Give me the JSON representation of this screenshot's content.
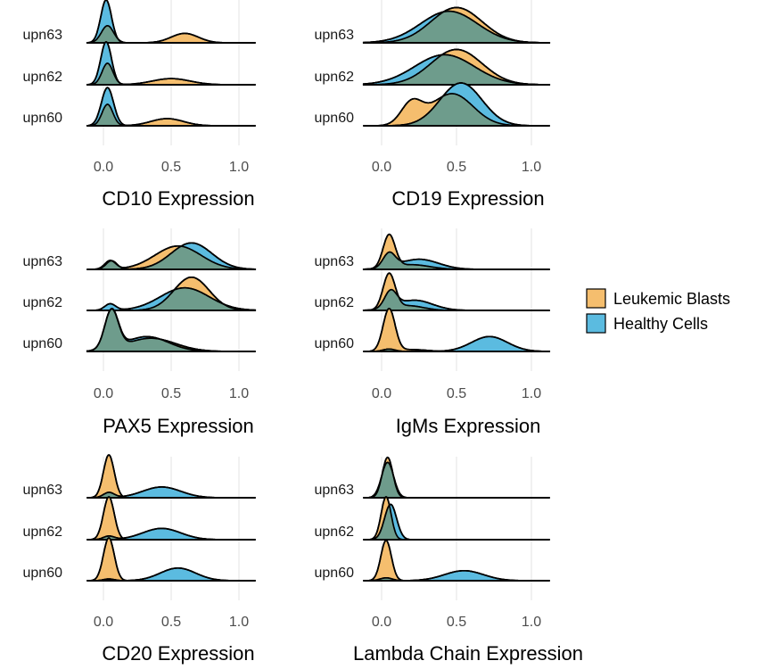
{
  "chart_data": [
    {
      "type": "ridgeline",
      "xlabel": "CD10 Expression",
      "xlim": [
        -0.12,
        1.12
      ],
      "xticks": [
        {
          "value": 0,
          "label": "0.0"
        },
        {
          "value": 0.5,
          "label": "0.5"
        },
        {
          "value": 1,
          "label": "1.0"
        }
      ],
      "groups": [
        {
          "label": "upn63",
          "leukemic": [
            {
              "mu": 0.03,
              "sd": 0.045,
              "w": 0.45
            },
            {
              "mu": 0.6,
              "sd": 0.1,
              "w": 0.55
            }
          ],
          "healthy": [
            {
              "mu": 0.02,
              "sd": 0.04,
              "w": 1.0
            }
          ]
        },
        {
          "label": "upn62",
          "leukemic": [
            {
              "mu": 0.03,
              "sd": 0.04,
              "w": 0.5
            },
            {
              "mu": 0.5,
              "sd": 0.14,
              "w": 0.5
            }
          ],
          "healthy": [
            {
              "mu": 0.02,
              "sd": 0.04,
              "w": 1.0
            }
          ]
        },
        {
          "label": "upn60",
          "leukemic": [
            {
              "mu": 0.03,
              "sd": 0.04,
              "w": 0.5
            },
            {
              "mu": 0.47,
              "sd": 0.12,
              "w": 0.5
            }
          ],
          "healthy": [
            {
              "mu": 0.03,
              "sd": 0.045,
              "w": 1.0
            }
          ]
        }
      ]
    },
    {
      "type": "ridgeline",
      "xlabel": "CD19 Expression",
      "xlim": [
        -0.12,
        1.12
      ],
      "xticks": [
        {
          "value": 0,
          "label": "0.0"
        },
        {
          "value": 0.5,
          "label": "0.5"
        },
        {
          "value": 1,
          "label": "1.0"
        }
      ],
      "groups": [
        {
          "label": "upn63",
          "leukemic": [
            {
              "mu": 0.5,
              "sd": 0.17,
              "w": 1.0
            }
          ],
          "healthy": [
            {
              "mu": 0.45,
              "sd": 0.19,
              "w": 1.0
            }
          ]
        },
        {
          "label": "upn62",
          "leukemic": [
            {
              "mu": 0.5,
              "sd": 0.17,
              "w": 1.0
            }
          ],
          "healthy": [
            {
              "mu": 0.42,
              "sd": 0.2,
              "w": 1.0
            }
          ]
        },
        {
          "label": "upn60",
          "leukemic": [
            {
              "mu": 0.2,
              "sd": 0.07,
              "w": 0.25
            },
            {
              "mu": 0.47,
              "sd": 0.14,
              "w": 0.75
            }
          ],
          "healthy": [
            {
              "mu": 0.53,
              "sd": 0.14,
              "w": 1.0
            }
          ]
        }
      ]
    },
    {
      "type": "ridgeline",
      "xlabel": "PAX5 Expression",
      "xlim": [
        -0.12,
        1.12
      ],
      "xticks": [
        {
          "value": 0,
          "label": "0.0"
        },
        {
          "value": 0.5,
          "label": "0.5"
        },
        {
          "value": 1,
          "label": "1.0"
        }
      ],
      "groups": [
        {
          "label": "upn63",
          "leukemic": [
            {
              "mu": 0.05,
              "sd": 0.04,
              "w": 0.08
            },
            {
              "mu": 0.55,
              "sd": 0.17,
              "w": 0.92
            }
          ],
          "healthy": [
            {
              "mu": 0.06,
              "sd": 0.04,
              "w": 0.08
            },
            {
              "mu": 0.65,
              "sd": 0.15,
              "w": 0.92
            }
          ]
        },
        {
          "label": "upn62",
          "leukemic": [
            {
              "mu": 0.65,
              "sd": 0.13,
              "w": 1.0
            }
          ],
          "healthy": [
            {
              "mu": 0.05,
              "sd": 0.04,
              "w": 0.06
            },
            {
              "mu": 0.6,
              "sd": 0.18,
              "w": 0.94
            }
          ]
        },
        {
          "label": "upn60",
          "leukemic": [
            {
              "mu": 0.06,
              "sd": 0.05,
              "w": 0.45
            },
            {
              "mu": 0.35,
              "sd": 0.18,
              "w": 0.55
            }
          ],
          "healthy": [
            {
              "mu": 0.06,
              "sd": 0.05,
              "w": 0.45
            },
            {
              "mu": 0.32,
              "sd": 0.16,
              "w": 0.55
            }
          ]
        }
      ]
    },
    {
      "type": "ridgeline",
      "xlabel": "IgMs Expression",
      "xlim": [
        -0.12,
        1.12
      ],
      "xticks": [
        {
          "value": 0,
          "label": "0.0"
        },
        {
          "value": 0.5,
          "label": "0.5"
        },
        {
          "value": 1,
          "label": "1.0"
        }
      ],
      "groups": [
        {
          "label": "upn63",
          "leukemic": [
            {
              "mu": 0.05,
              "sd": 0.04,
              "w": 0.7
            },
            {
              "mu": 0.2,
              "sd": 0.12,
              "w": 0.3
            }
          ],
          "healthy": [
            {
              "mu": 0.05,
              "sd": 0.04,
              "w": 0.3
            },
            {
              "mu": 0.25,
              "sd": 0.13,
              "w": 0.7
            }
          ]
        },
        {
          "label": "upn62",
          "leukemic": [
            {
              "mu": 0.05,
              "sd": 0.04,
              "w": 0.75
            },
            {
              "mu": 0.18,
              "sd": 0.1,
              "w": 0.25
            }
          ],
          "healthy": [
            {
              "mu": 0.06,
              "sd": 0.04,
              "w": 0.35
            },
            {
              "mu": 0.22,
              "sd": 0.12,
              "w": 0.65
            }
          ]
        },
        {
          "label": "upn60",
          "leukemic": [
            {
              "mu": 0.05,
              "sd": 0.04,
              "w": 0.9
            },
            {
              "mu": 0.2,
              "sd": 0.1,
              "w": 0.1
            }
          ],
          "healthy": [
            {
              "mu": 0.05,
              "sd": 0.04,
              "w": 0.05
            },
            {
              "mu": 0.72,
              "sd": 0.12,
              "w": 0.95
            }
          ]
        }
      ]
    },
    {
      "type": "ridgeline",
      "xlabel": "CD20 Expression",
      "xlim": [
        -0.12,
        1.12
      ],
      "xticks": [
        {
          "value": 0,
          "label": "0.0"
        },
        {
          "value": 0.5,
          "label": "0.5"
        },
        {
          "value": 1,
          "label": "1.0"
        }
      ],
      "groups": [
        {
          "label": "upn63",
          "leukemic": [
            {
              "mu": 0.04,
              "sd": 0.04,
              "w": 1.0
            }
          ],
          "healthy": [
            {
              "mu": 0.04,
              "sd": 0.04,
              "w": 0.12
            },
            {
              "mu": 0.43,
              "sd": 0.14,
              "w": 0.88
            }
          ]
        },
        {
          "label": "upn62",
          "leukemic": [
            {
              "mu": 0.04,
              "sd": 0.04,
              "w": 1.0
            }
          ],
          "healthy": [
            {
              "mu": 0.04,
              "sd": 0.04,
              "w": 0.08
            },
            {
              "mu": 0.43,
              "sd": 0.14,
              "w": 0.92
            }
          ]
        },
        {
          "label": "upn60",
          "leukemic": [
            {
              "mu": 0.04,
              "sd": 0.04,
              "w": 1.0
            }
          ],
          "healthy": [
            {
              "mu": 0.04,
              "sd": 0.04,
              "w": 0.04
            },
            {
              "mu": 0.55,
              "sd": 0.13,
              "w": 0.96
            }
          ]
        }
      ]
    },
    {
      "type": "ridgeline",
      "xlabel": "Lambda Chain Expression",
      "xlim": [
        -0.12,
        1.12
      ],
      "xticks": [
        {
          "value": 0,
          "label": "0.0"
        },
        {
          "value": 0.5,
          "label": "0.5"
        },
        {
          "value": 1,
          "label": "1.0"
        }
      ],
      "groups": [
        {
          "label": "upn63",
          "leukemic": [
            {
              "mu": 0.04,
              "sd": 0.035,
              "w": 1.0
            }
          ],
          "healthy": [
            {
              "mu": 0.04,
              "sd": 0.04,
              "w": 1.0
            }
          ]
        },
        {
          "label": "upn62",
          "leukemic": [
            {
              "mu": 0.03,
              "sd": 0.033,
              "w": 1.0
            }
          ],
          "healthy": [
            {
              "mu": 0.06,
              "sd": 0.04,
              "w": 1.0
            }
          ]
        },
        {
          "label": "upn60",
          "leukemic": [
            {
              "mu": 0.03,
              "sd": 0.035,
              "w": 1.0
            }
          ],
          "healthy": [
            {
              "mu": 0.03,
              "sd": 0.04,
              "w": 0.08
            },
            {
              "mu": 0.55,
              "sd": 0.13,
              "w": 0.92
            }
          ]
        }
      ]
    }
  ],
  "legend": {
    "position": "right",
    "entries": [
      {
        "label": "Leukemic Blasts",
        "color": "#f5be6e"
      },
      {
        "label": "Healthy Cells",
        "color": "#5bbbe0"
      }
    ]
  },
  "colors": {
    "leukemic": "#f5be6e",
    "healthy": "#5bbbe0",
    "overlap": "#6e9c8c",
    "outline": "#000000",
    "grid": "#e3e3e3"
  }
}
